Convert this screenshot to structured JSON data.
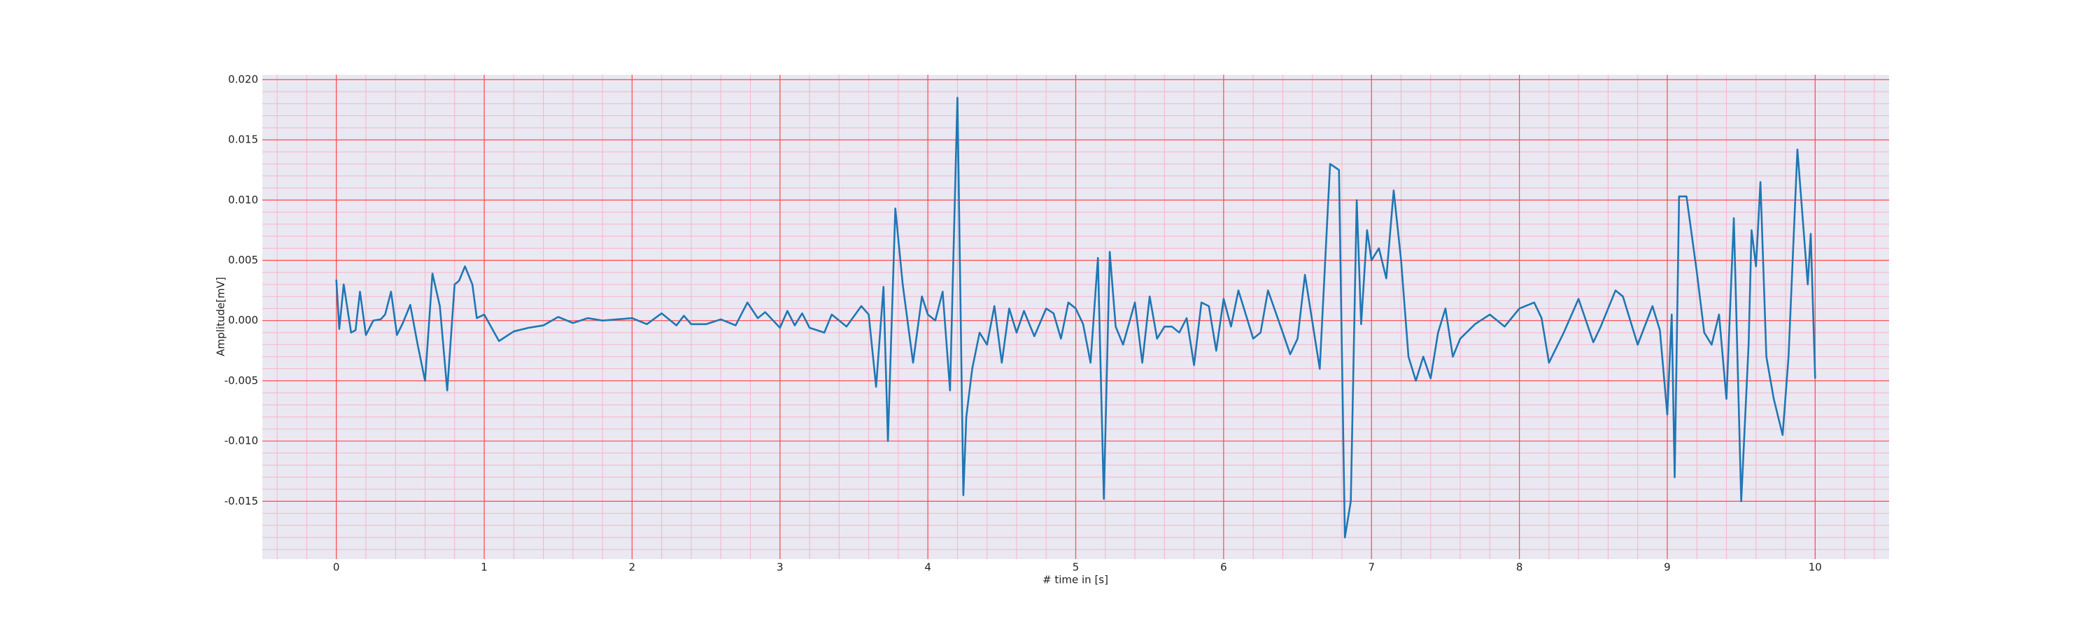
{
  "chart_data": {
    "type": "line",
    "xlabel": "# time in [s]",
    "ylabel": "Amplitude[mV]",
    "xlim": [
      -0.5,
      10.5
    ],
    "ylim": [
      -0.0198,
      0.0204
    ],
    "xticks": [
      0,
      1,
      2,
      3,
      4,
      5,
      6,
      7,
      8,
      9,
      10
    ],
    "yticks": [
      {
        "value": -0.015,
        "label": "-0.015"
      },
      {
        "value": -0.01,
        "label": "-0.010"
      },
      {
        "value": -0.005,
        "label": "-0.005"
      },
      {
        "value": 0,
        "label": "0.000"
      },
      {
        "value": 0.005,
        "label": "0.005"
      },
      {
        "value": 0.01,
        "label": "0.010"
      },
      {
        "value": 0.015,
        "label": "0.015"
      },
      {
        "value": 0.02,
        "label": "0.020"
      }
    ],
    "grid": true,
    "grid_color": "#ff4b4b",
    "minor_grid": true,
    "minor_grid_color": "#f5b5c8",
    "background": "#eae8f2",
    "series": [
      {
        "color": "#1f77b4",
        "x": [
          0,
          0.02,
          0.05,
          0.1,
          0.13,
          0.16,
          0.2,
          0.25,
          0.3,
          0.33,
          0.37,
          0.41,
          0.45,
          0.5,
          0.55,
          0.6,
          0.65,
          0.7,
          0.75,
          0.8,
          0.83,
          0.87,
          0.92,
          0.95,
          1.0,
          1.1,
          1.2,
          1.3,
          1.4,
          1.5,
          1.6,
          1.7,
          1.8,
          1.9,
          2.0,
          2.1,
          2.2,
          2.3,
          2.35,
          2.4,
          2.5,
          2.6,
          2.7,
          2.78,
          2.85,
          2.9,
          3.0,
          3.05,
          3.1,
          3.15,
          3.2,
          3.3,
          3.35,
          3.45,
          3.55,
          3.6,
          3.65,
          3.7,
          3.73,
          3.78,
          3.83,
          3.9,
          3.96,
          4.0,
          4.05,
          4.1,
          4.15,
          4.2,
          4.24,
          4.26,
          4.3,
          4.35,
          4.4,
          4.45,
          4.5,
          4.55,
          4.6,
          4.65,
          4.72,
          4.8,
          4.85,
          4.9,
          4.95,
          5.0,
          5.05,
          5.1,
          5.15,
          5.19,
          5.23,
          5.27,
          5.32,
          5.4,
          5.45,
          5.5,
          5.55,
          5.6,
          5.65,
          5.7,
          5.75,
          5.8,
          5.85,
          5.9,
          5.95,
          6.0,
          6.05,
          6.1,
          6.2,
          6.25,
          6.3,
          6.4,
          6.45,
          6.5,
          6.55,
          6.65,
          6.72,
          6.78,
          6.82,
          6.86,
          6.9,
          6.93,
          6.97,
          7.0,
          7.05,
          7.1,
          7.15,
          7.2,
          7.25,
          7.3,
          7.35,
          7.4,
          7.45,
          7.5,
          7.55,
          7.6,
          7.7,
          7.8,
          7.9,
          8.0,
          8.1,
          8.15,
          8.2,
          8.3,
          8.4,
          8.5,
          8.55,
          8.65,
          8.7,
          8.8,
          8.9,
          8.95,
          9.0,
          9.03,
          9.05,
          9.08,
          9.13,
          9.2,
          9.25,
          9.3,
          9.35,
          9.4,
          9.45,
          9.5,
          9.55,
          9.57,
          9.6,
          9.63,
          9.67,
          9.72,
          9.78,
          9.82,
          9.88,
          9.95,
          9.97,
          10.0
        ],
        "values": [
          0.0034,
          -0.0007,
          0.003,
          -0.001,
          -0.0008,
          0.0024,
          -0.0012,
          0,
          0.0001,
          0.0005,
          0.0024,
          -0.0012,
          -0.0002,
          0.0013,
          -0.002,
          -0.005,
          0.0039,
          0.0012,
          -0.0058,
          0.003,
          0.0033,
          0.0045,
          0.003,
          0.0002,
          0.0005,
          -0.0017,
          -0.0009,
          -0.0006,
          -0.0004,
          0.0003,
          -0.0002,
          0.0002,
          0,
          0.0001,
          0.0002,
          -0.0003,
          0.0006,
          -0.0004,
          0.0004,
          -0.0003,
          -0.0003,
          0.0001,
          -0.0004,
          0.0015,
          0.0002,
          0.0007,
          -0.0006,
          0.0008,
          -0.0004,
          0.0006,
          -0.0006,
          -0.001,
          0.0005,
          -0.0005,
          0.0012,
          0.0005,
          -0.0055,
          0.0028,
          -0.01,
          0.0093,
          0.003,
          -0.0035,
          0.002,
          0.0005,
          0,
          0.0024,
          -0.0058,
          0.0185,
          -0.0145,
          -0.008,
          -0.004,
          -0.001,
          -0.002,
          0.0012,
          -0.0035,
          0.001,
          -0.001,
          0.0008,
          -0.0013,
          0.001,
          0.0006,
          -0.0015,
          0.0015,
          0.001,
          -0.0003,
          -0.0035,
          0.0052,
          -0.0148,
          0.0057,
          -0.0005,
          -0.002,
          0.0015,
          -0.0035,
          0.002,
          -0.0015,
          -0.0005,
          -0.0005,
          -0.001,
          0.0002,
          -0.0037,
          0.0015,
          0.0012,
          -0.0025,
          0.0018,
          -0.0005,
          0.0025,
          -0.0015,
          -0.001,
          0.0025,
          -0.001,
          -0.0028,
          -0.0015,
          0.0038,
          -0.004,
          0.013,
          0.0125,
          -0.018,
          -0.015,
          0.01,
          -0.0003,
          0.0075,
          0.005,
          0.006,
          0.0035,
          0.0108,
          0.005,
          -0.003,
          -0.005,
          -0.003,
          -0.0048,
          -0.001,
          0.001,
          -0.003,
          -0.0015,
          -0.0003,
          0.0005,
          -0.0005,
          0.001,
          0.0015,
          0.0002,
          -0.0035,
          -0.001,
          0.0018,
          -0.0018,
          -0.0005,
          0.0025,
          0.002,
          -0.002,
          0.0012,
          -0.0008,
          -0.0078,
          0.0005,
          -0.013,
          0.0103,
          0.0103,
          0.004,
          -0.001,
          -0.002,
          0.0005,
          -0.0065,
          0.0085,
          -0.015,
          -0.002,
          0.0075,
          0.0045,
          0.0115,
          -0.003,
          -0.0065,
          -0.0095,
          -0.003,
          0.0142,
          0.003,
          0.0072,
          -0.0048
        ]
      }
    ]
  }
}
